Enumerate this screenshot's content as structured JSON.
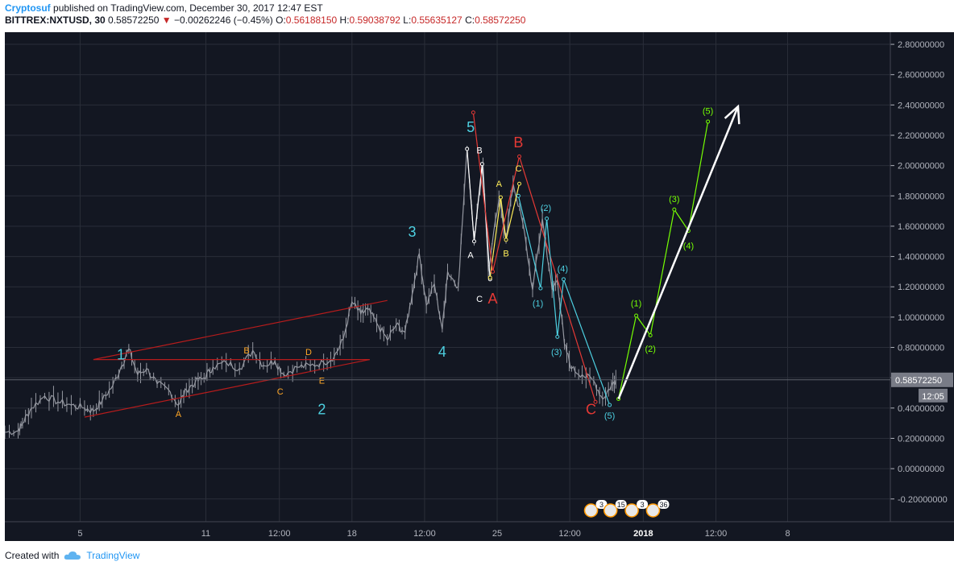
{
  "header": {
    "author": "Cryptosuf",
    "published_text": "published on TradingView.com, December 30, 2017 12:47 EST",
    "symbol": "BITTREX:NXTUSD, 30",
    "last": "0.58572250",
    "change_arrow": "▼",
    "change": "−0.00262246 (−0.45%)",
    "o_label": "O:",
    "o_value": "0.56188150",
    "h_label": "H:",
    "h_value": "0.59038792",
    "l_label": "L:",
    "l_value": "0.55635127",
    "c_label": "C:",
    "c_value": "0.58572250"
  },
  "footer": {
    "created_with": "Created with",
    "brand": "TradingView"
  },
  "colors": {
    "background": "#131722",
    "grid": "#2a2e39",
    "axis_text": "#b2b5be",
    "candle": "#9598a1",
    "channel": "#b71c1c",
    "cyan": "#4dd0e1",
    "orange": "#ffa726",
    "white": "#ffffff",
    "yellow": "#ffee58",
    "red": "#e53935",
    "green": "#76ff03"
  },
  "chart_data": {
    "type": "line",
    "title": "",
    "ylim": [
      -0.35,
      2.88
    ],
    "y_ticks": [
      2.8,
      2.6,
      2.4,
      2.2,
      2.0,
      1.8,
      1.6,
      1.4,
      1.2,
      1.0,
      0.8,
      0.6,
      0.4,
      0.2,
      0.0,
      -0.2
    ],
    "y_tick_labels": [
      "2.80000000",
      "2.60000000",
      "2.40000000",
      "2.20000000",
      "2.00000000",
      "1.80000000",
      "1.60000000",
      "1.40000000",
      "1.20000000",
      "1.00000000",
      "0.80000000",
      "0.60000000",
      "0.40000000",
      "0.20000000",
      "0.00000000",
      "-0.20000000"
    ],
    "x_ticks": [
      {
        "label": "5",
        "t": 0.085
      },
      {
        "label": "11",
        "t": 0.227
      },
      {
        "label": "12:00",
        "t": 0.31
      },
      {
        "label": "18",
        "t": 0.392
      },
      {
        "label": "12:00",
        "t": 0.474
      },
      {
        "label": "25",
        "t": 0.556
      },
      {
        "label": "12:00",
        "t": 0.638
      },
      {
        "label": "2018",
        "t": 0.721,
        "bold": true
      },
      {
        "label": "12:00",
        "t": 0.803
      },
      {
        "label": "8",
        "t": 0.884
      }
    ],
    "price_label": {
      "value": "0.58572250",
      "countdown": "12:05",
      "y": 0.586
    },
    "series": [
      {
        "kind": "price",
        "points": [
          [
            0.0,
            0.24
          ],
          [
            0.015,
            0.25
          ],
          [
            0.02,
            0.3
          ],
          [
            0.03,
            0.4
          ],
          [
            0.045,
            0.48
          ],
          [
            0.06,
            0.44
          ],
          [
            0.075,
            0.42
          ],
          [
            0.09,
            0.4
          ],
          [
            0.1,
            0.38
          ],
          [
            0.11,
            0.45
          ],
          [
            0.122,
            0.55
          ],
          [
            0.132,
            0.68
          ],
          [
            0.14,
            0.79
          ],
          [
            0.15,
            0.62
          ],
          [
            0.16,
            0.66
          ],
          [
            0.172,
            0.56
          ],
          [
            0.185,
            0.52
          ],
          [
            0.196,
            0.42
          ],
          [
            0.205,
            0.52
          ],
          [
            0.215,
            0.57
          ],
          [
            0.225,
            0.6
          ],
          [
            0.235,
            0.67
          ],
          [
            0.25,
            0.7
          ],
          [
            0.265,
            0.66
          ],
          [
            0.28,
            0.78
          ],
          [
            0.292,
            0.68
          ],
          [
            0.305,
            0.71
          ],
          [
            0.315,
            0.62
          ],
          [
            0.33,
            0.67
          ],
          [
            0.345,
            0.68
          ],
          [
            0.36,
            0.7
          ],
          [
            0.372,
            0.74
          ],
          [
            0.382,
            0.85
          ],
          [
            0.392,
            1.1
          ],
          [
            0.402,
            1.02
          ],
          [
            0.41,
            1.05
          ],
          [
            0.42,
            0.96
          ],
          [
            0.432,
            0.85
          ],
          [
            0.442,
            0.95
          ],
          [
            0.452,
            0.9
          ],
          [
            0.46,
            1.15
          ],
          [
            0.468,
            1.42
          ],
          [
            0.476,
            1.08
          ],
          [
            0.485,
            1.22
          ],
          [
            0.494,
            0.92
          ],
          [
            0.5,
            1.3
          ],
          [
            0.512,
            1.2
          ],
          [
            0.522,
            2.11
          ],
          [
            0.53,
            1.52
          ],
          [
            0.54,
            2.02
          ],
          [
            0.546,
            1.3
          ],
          [
            0.558,
            1.78
          ],
          [
            0.566,
            1.52
          ],
          [
            0.574,
            1.88
          ],
          [
            0.585,
            1.62
          ],
          [
            0.596,
            1.18
          ],
          [
            0.607,
            1.65
          ],
          [
            0.618,
            1.18
          ],
          [
            0.624,
            1.25
          ],
          [
            0.632,
            0.82
          ],
          [
            0.64,
            0.66
          ],
          [
            0.652,
            0.62
          ],
          [
            0.665,
            0.58
          ],
          [
            0.675,
            0.46
          ],
          [
            0.685,
            0.55
          ],
          [
            0.69,
            0.59
          ]
        ]
      }
    ],
    "annotations": {
      "channel_upper": [
        [
          0.1,
          0.72
        ],
        [
          0.432,
          1.11
        ]
      ],
      "channel_lower": [
        [
          0.09,
          0.34
        ],
        [
          0.412,
          0.72
        ]
      ],
      "horizontal": [
        [
          0.1,
          0.72
        ],
        [
          0.412,
          0.72
        ]
      ],
      "wave_white": [
        [
          0.522,
          2.11
        ],
        [
          0.53,
          1.5
        ],
        [
          0.539,
          2.01
        ],
        [
          0.548,
          1.25
        ]
      ],
      "wave_yellow": [
        [
          0.548,
          1.26
        ],
        [
          0.56,
          1.79
        ],
        [
          0.566,
          1.51
        ],
        [
          0.581,
          1.88
        ]
      ],
      "wave_red": [
        [
          0.529,
          2.35
        ],
        [
          0.551,
          1.3
        ],
        [
          0.581,
          2.06
        ],
        [
          0.667,
          0.44
        ]
      ],
      "wave_cyan": [
        [
          0.58,
          1.8
        ],
        [
          0.605,
          1.19
        ],
        [
          0.612,
          1.65
        ],
        [
          0.624,
          0.87
        ],
        [
          0.631,
          1.25
        ],
        [
          0.683,
          0.42
        ]
      ],
      "wave_green": [
        [
          0.693,
          0.46
        ],
        [
          0.713,
          1.01
        ],
        [
          0.729,
          0.88
        ],
        [
          0.756,
          1.71
        ],
        [
          0.772,
          1.57
        ],
        [
          0.794,
          2.29
        ]
      ],
      "white_arrow": [
        [
          0.693,
          0.46
        ],
        [
          0.828,
          2.39
        ]
      ]
    },
    "labels": [
      {
        "text": "1",
        "t": 0.131,
        "y": 0.72,
        "color": "cyan",
        "size": 18
      },
      {
        "text": "2",
        "t": 0.358,
        "y": 0.36,
        "color": "cyan",
        "size": 18
      },
      {
        "text": "3",
        "t": 0.46,
        "y": 1.53,
        "color": "cyan",
        "size": 18
      },
      {
        "text": "4",
        "t": 0.494,
        "y": 0.74,
        "color": "cyan",
        "size": 18
      },
      {
        "text": "5",
        "t": 0.526,
        "y": 2.22,
        "color": "cyan",
        "size": 18
      },
      {
        "text": "A",
        "t": 0.196,
        "y": 0.34,
        "color": "orange",
        "size": 11
      },
      {
        "text": "B",
        "t": 0.273,
        "y": 0.76,
        "color": "orange",
        "size": 11
      },
      {
        "text": "C",
        "t": 0.311,
        "y": 0.49,
        "color": "orange",
        "size": 11
      },
      {
        "text": "D",
        "t": 0.343,
        "y": 0.75,
        "color": "orange",
        "size": 11
      },
      {
        "text": "E",
        "t": 0.358,
        "y": 0.56,
        "color": "orange",
        "size": 11
      },
      {
        "text": "B",
        "t": 0.536,
        "y": 2.08,
        "color": "white",
        "size": 11
      },
      {
        "text": "A",
        "t": 0.526,
        "y": 1.39,
        "color": "white",
        "size": 11
      },
      {
        "text": "C",
        "t": 0.536,
        "y": 1.1,
        "color": "white",
        "size": 11
      },
      {
        "text": "A",
        "t": 0.558,
        "y": 1.86,
        "color": "yellow",
        "size": 11
      },
      {
        "text": "B",
        "t": 0.566,
        "y": 1.4,
        "color": "yellow",
        "size": 11
      },
      {
        "text": "C",
        "t": 0.58,
        "y": 1.96,
        "color": "yellow",
        "size": 11
      },
      {
        "text": "A",
        "t": 0.551,
        "y": 1.09,
        "color": "red",
        "size": 18
      },
      {
        "text": "B",
        "t": 0.58,
        "y": 2.12,
        "color": "red",
        "size": 18
      },
      {
        "text": "C",
        "t": 0.662,
        "y": 0.36,
        "color": "red",
        "size": 18
      },
      {
        "text": "(1)",
        "t": 0.602,
        "y": 1.07,
        "color": "cyan",
        "size": 11
      },
      {
        "text": "(2)",
        "t": 0.611,
        "y": 1.7,
        "color": "cyan",
        "size": 11
      },
      {
        "text": "(3)",
        "t": 0.623,
        "y": 0.75,
        "color": "cyan",
        "size": 11
      },
      {
        "text": "(4)",
        "t": 0.63,
        "y": 1.3,
        "color": "cyan",
        "size": 11
      },
      {
        "text": "(5)",
        "t": 0.683,
        "y": 0.33,
        "color": "cyan",
        "size": 11
      },
      {
        "text": "(1)",
        "t": 0.713,
        "y": 1.07,
        "color": "green",
        "size": 11
      },
      {
        "text": "(2)",
        "t": 0.729,
        "y": 0.77,
        "color": "green",
        "size": 11
      },
      {
        "text": "(3)",
        "t": 0.756,
        "y": 1.76,
        "color": "green",
        "size": 11
      },
      {
        "text": "(4)",
        "t": 0.772,
        "y": 1.45,
        "color": "green",
        "size": 11
      },
      {
        "text": "(5)",
        "t": 0.794,
        "y": 2.34,
        "color": "green",
        "size": 11
      }
    ],
    "events": [
      {
        "text": "3",
        "t": 0.662
      },
      {
        "text": "15",
        "t": 0.684
      },
      {
        "text": "3",
        "t": 0.708
      },
      {
        "text": "36",
        "t": 0.732
      }
    ]
  }
}
